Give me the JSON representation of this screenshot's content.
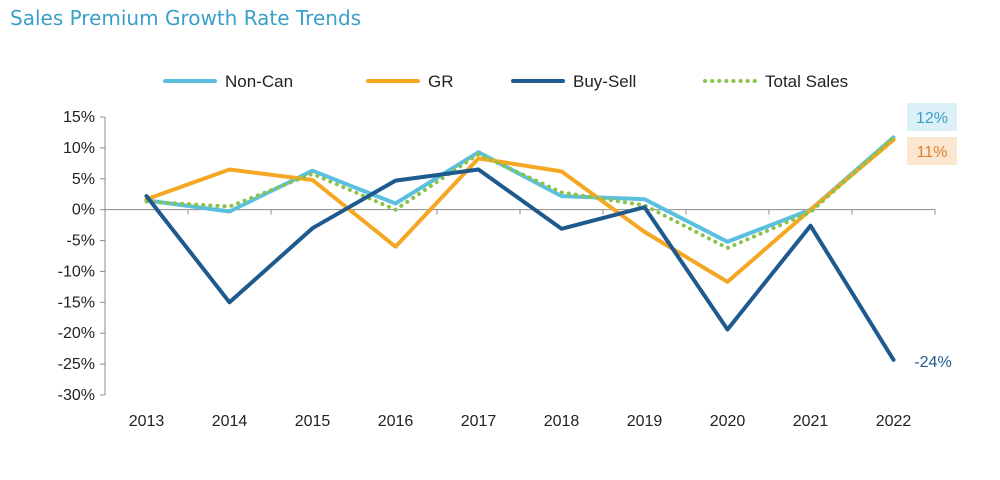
{
  "chart_data": {
    "type": "line",
    "title": "Sales Premium Growth Rate Trends",
    "x": [
      "2013",
      "2014",
      "2015",
      "2016",
      "2017",
      "2018",
      "2019",
      "2020",
      "2021",
      "2022"
    ],
    "ylim": [
      -30,
      15
    ],
    "yticks": [
      15,
      10,
      5,
      0,
      -5,
      -10,
      -15,
      -20,
      -25,
      -30
    ],
    "ytick_labels": [
      "15%",
      "10%",
      "5%",
      "0%",
      "-5%",
      "-10%",
      "-15%",
      "-20%",
      "-25%",
      "-30%"
    ],
    "grid": false,
    "legend_position": "top",
    "series": [
      {
        "name": "Non-Can",
        "color": "#5bc0e0",
        "style": "solid",
        "values": [
          1.5,
          -0.3,
          6.3,
          1.0,
          9.3,
          2.2,
          1.7,
          -5.2,
          0.0,
          11.7
        ]
      },
      {
        "name": "GR",
        "color": "#f5a623",
        "style": "solid",
        "values": [
          1.7,
          6.5,
          4.8,
          -6.0,
          8.3,
          6.2,
          -3.6,
          -11.7,
          0.0,
          11.3
        ]
      },
      {
        "name": "Buy-Sell",
        "color": "#1f5a8f",
        "style": "solid",
        "values": [
          2.2,
          -15.0,
          -3.0,
          4.7,
          6.5,
          -3.1,
          0.4,
          -19.4,
          -2.6,
          -24.3
        ]
      },
      {
        "name": "Total Sales",
        "color": "#8bc34a",
        "style": "dotted",
        "values": [
          1.3,
          0.5,
          5.8,
          0.0,
          9.0,
          2.8,
          0.7,
          -6.2,
          -0.4,
          11.7
        ]
      }
    ],
    "annotations": [
      {
        "text": "12%",
        "series": "Non-Can",
        "color": "#3aa0c9",
        "bg": "#dcf0f8"
      },
      {
        "text": "11%",
        "series": "GR",
        "color": "#d9822b",
        "bg": "#fbe7cf"
      },
      {
        "text": "-24%",
        "series": "Buy-Sell",
        "color": "#1f5a8f",
        "bg": ""
      }
    ]
  }
}
